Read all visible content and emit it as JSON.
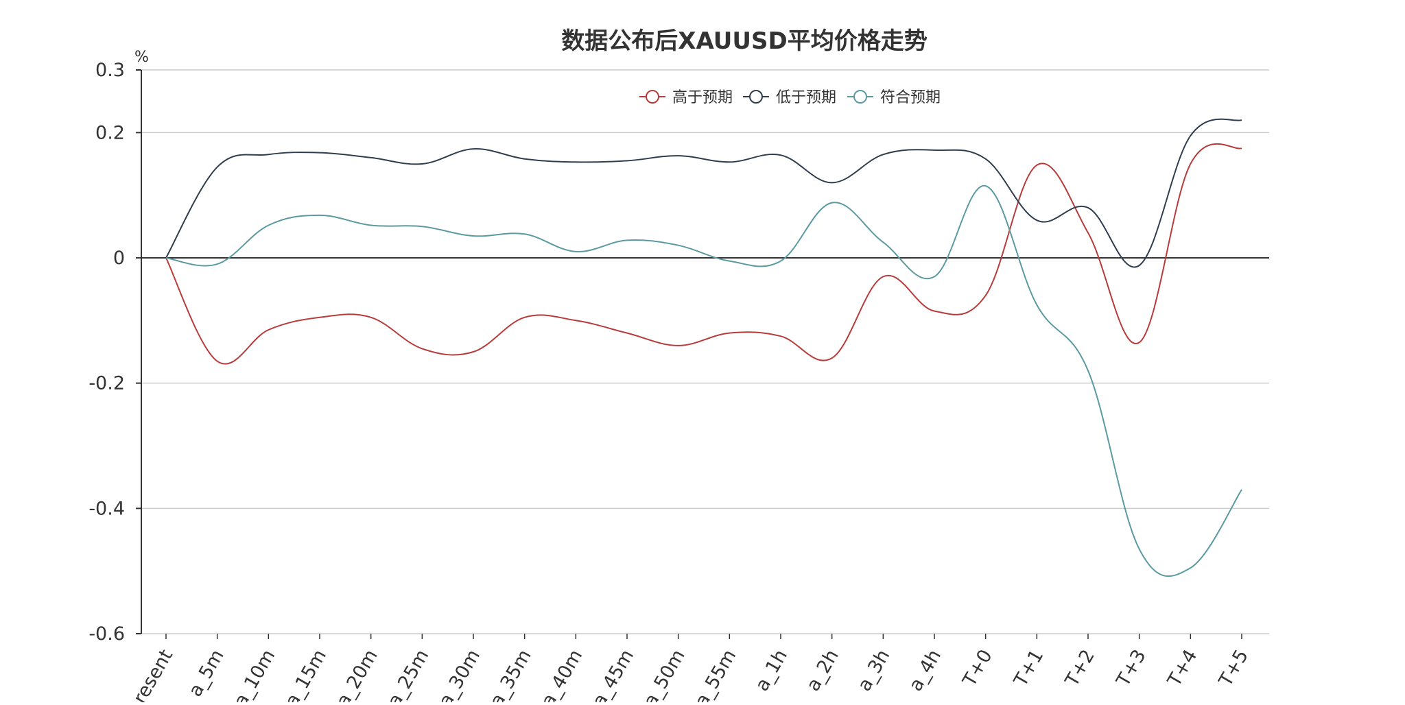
{
  "chart_data": {
    "type": "line",
    "title": "数据公布后XAUUSD平均价格走势",
    "ylabel": "%",
    "xlabel": "",
    "ylim": [
      -0.6,
      0.3
    ],
    "yticks": [
      0.3,
      0.2,
      0,
      -0.2,
      -0.4,
      -0.6
    ],
    "ytick_labels": [
      "0.3",
      "0.2",
      "0",
      "-0.2",
      "-0.4",
      "-0.6"
    ],
    "grid": true,
    "legend_position": "top-center",
    "categories": [
      "present",
      "a_5m",
      "a_10m",
      "a_15m",
      "a_20m",
      "a_25m",
      "a_30m",
      "a_35m",
      "a_40m",
      "a_45m",
      "a_50m",
      "a_55m",
      "a_1h",
      "a_2h",
      "a_3h",
      "a_4h",
      "T+0",
      "T+1",
      "T+2",
      "T+3",
      "T+4",
      "T+5"
    ],
    "series": [
      {
        "name": "高于预期",
        "color": "#b83b3b",
        "values": [
          0,
          -0.165,
          -0.115,
          -0.095,
          -0.095,
          -0.145,
          -0.15,
          -0.095,
          -0.1,
          -0.12,
          -0.14,
          -0.12,
          -0.125,
          -0.16,
          -0.03,
          -0.085,
          -0.06,
          0.148,
          0.04,
          -0.135,
          0.15,
          0.175
        ]
      },
      {
        "name": "低于预期",
        "color": "#2f3e4e",
        "values": [
          0,
          0.145,
          0.165,
          0.168,
          0.16,
          0.15,
          0.174,
          0.158,
          0.153,
          0.155,
          0.163,
          0.153,
          0.164,
          0.12,
          0.165,
          0.172,
          0.158,
          0.06,
          0.08,
          -0.012,
          0.195,
          0.22
        ]
      },
      {
        "name": "符合预期",
        "color": "#5b9aa0",
        "values": [
          0,
          -0.01,
          0.052,
          0.068,
          0.052,
          0.05,
          0.035,
          0.038,
          0.01,
          0.028,
          0.02,
          -0.005,
          -0.005,
          0.088,
          0.025,
          -0.03,
          0.115,
          -0.075,
          -0.18,
          -0.465,
          -0.495,
          -0.37
        ]
      }
    ]
  }
}
